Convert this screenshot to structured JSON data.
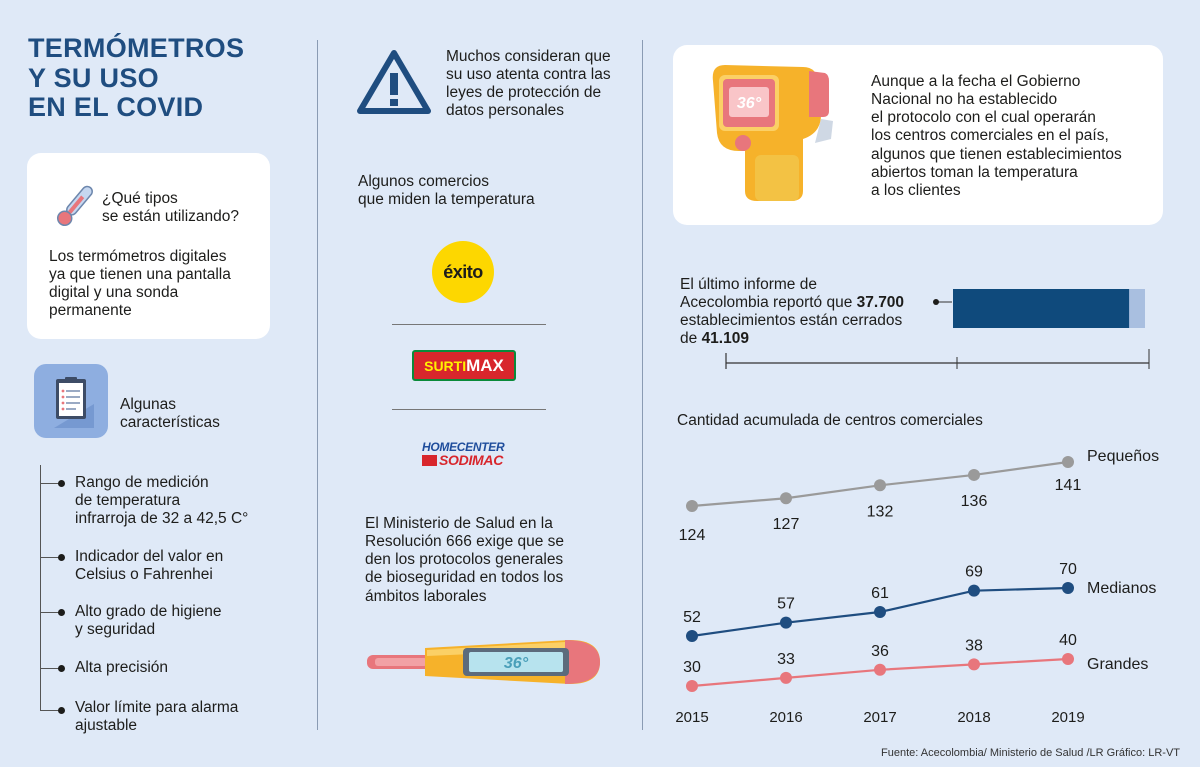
{
  "title": {
    "line1": "TERMÓMETROS",
    "line2": "Y SU USO",
    "line3": "EN EL COVID"
  },
  "types_card": {
    "question_line1": "¿Qué tipos",
    "question_line2": "se están utilizando?",
    "answer": [
      "Los termómetros digitales",
      "ya que tienen una pantalla",
      "digital y una sonda",
      "permanente"
    ]
  },
  "features": {
    "heading_line1": "Algunas",
    "heading_line2": "características",
    "items": [
      [
        "Rango de medición",
        "de temperatura",
        "infrarroja de 32 a 42,5 C°"
      ],
      [
        "Indicador del valor en",
        "Celsius o Fahrenhei"
      ],
      [
        "Alto grado de higiene",
        "y seguridad"
      ],
      [
        "Alta precisión"
      ],
      [
        "Valor límite para alarma",
        "ajustable"
      ]
    ]
  },
  "warning": [
    "Muchos consideran que",
    "su uso atenta contra las",
    "leyes de protección de",
    "datos personales"
  ],
  "stores": {
    "heading_line1": "Algunos comercios",
    "heading_line2": "que miden la temperatura",
    "logo1": "éxito",
    "logo2_a": "SURTI",
    "logo2_b": "MAX",
    "logo3_a": "HOMECENTER",
    "logo3_b": "SODIMAC"
  },
  "ministry": [
    "El Ministerio de Salud en la",
    "Resolución 666 exige que se",
    "den los protocolos generales",
    "de bioseguridad en todos los",
    "ámbitos laborales"
  ],
  "thermometer_display": "36°",
  "gun_display": "36°",
  "government": [
    "Aunque a la fecha el Gobierno",
    "Nacional no ha establecido",
    "el protocolo con el cual operarán",
    "los centros comerciales en el país,",
    "algunos que tienen establecimientos",
    "abiertos toman la temperatura",
    "a los clientes"
  ],
  "report": {
    "line1": "El último informe de",
    "line2_a": "Acecolombia reportó que ",
    "line2_b": "37.700",
    "line3": "establecimientos están cerrados",
    "line4_a": "de ",
    "line4_b": "41.109"
  },
  "colors": {
    "title": "#1f4d80",
    "pequenos": "#9a9a9a",
    "medianos": "#1f4d80",
    "grandes": "#e8767c",
    "bar_closed": "#0f4a7c",
    "bar_total": "#a9bfe0"
  },
  "chart_data": {
    "type": "line",
    "title": "Cantidad acumulada de centros comerciales",
    "x": [
      "2015",
      "2016",
      "2017",
      "2018",
      "2019"
    ],
    "series": [
      {
        "name": "Pequeños",
        "values": [
          124,
          127,
          132,
          136,
          141
        ]
      },
      {
        "name": "Medianos",
        "values": [
          52,
          57,
          61,
          69,
          70
        ]
      },
      {
        "name": "Grandes",
        "values": [
          30,
          33,
          36,
          38,
          40
        ]
      }
    ]
  },
  "bar_data": {
    "closed": 37700,
    "total": 41109
  },
  "source": "Fuente: Acecolombia/ Ministerio de Salud /LR Gráfico: LR-VT"
}
